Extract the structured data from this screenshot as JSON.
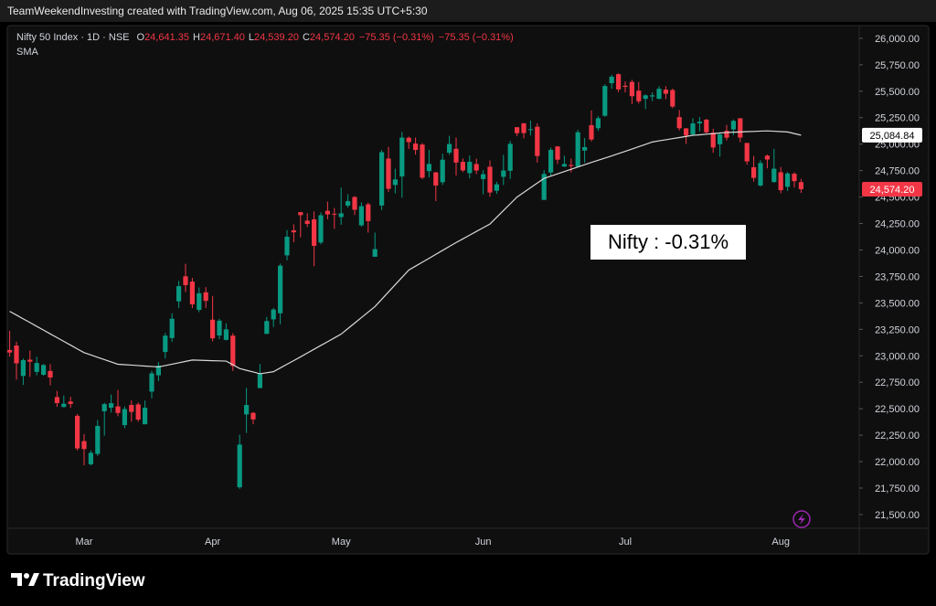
{
  "top_bar": "TeamWeekendInvesting created with TradingView.com, Aug 06, 2025 15:35 UTC+5:30",
  "brand": "TradingView",
  "chart_data": {
    "type": "candlestick",
    "symbol": "Nifty 50 Index · 1D · NSE",
    "ohlc_legend": [
      {
        "key": "O",
        "text": "24,641.35"
      },
      {
        "key": "H",
        "text": "24,671.40"
      },
      {
        "key": "L",
        "text": "24,539.20"
      },
      {
        "key": "C",
        "text": "24,574.20"
      }
    ],
    "change_texts": [
      "−75.35 (−0.31%)",
      "−75.35 (−0.31%)"
    ],
    "annotation": "Nifty : -0.31%",
    "up_color": "#089981",
    "down_color": "#f23645",
    "grid": false,
    "categories": [
      null,
      null,
      null,
      null,
      null,
      null,
      null,
      null,
      null,
      null,
      null,
      "Mar",
      null,
      null,
      null,
      null,
      null,
      null,
      null,
      null,
      null,
      null,
      null,
      null,
      null,
      null,
      null,
      null,
      null,
      null,
      "Apr",
      null,
      null,
      null,
      null,
      null,
      null,
      null,
      null,
      null,
      null,
      null,
      null,
      null,
      null,
      null,
      null,
      null,
      null,
      "May",
      null,
      null,
      null,
      null,
      null,
      null,
      null,
      null,
      null,
      null,
      null,
      null,
      null,
      null,
      null,
      null,
      null,
      null,
      null,
      null,
      "Jun",
      null,
      null,
      null,
      null,
      null,
      null,
      null,
      null,
      null,
      null,
      null,
      null,
      null,
      null,
      null,
      null,
      null,
      null,
      null,
      null,
      "Jul",
      null,
      null,
      null,
      null,
      null,
      null,
      null,
      null,
      null,
      null,
      null,
      null,
      null,
      null,
      null,
      null,
      null,
      null,
      null,
      null,
      null,
      null,
      "Aug",
      null,
      null,
      null
    ],
    "open": [
      23055,
      23097,
      22810,
      22963,
      22848,
      22821,
      22857,
      22610,
      22516,
      22568,
      22433,
      22194,
      21975,
      22073,
      22476,
      22509,
      22522,
      22345,
      22536,
      22541,
      22353,
      22662,
      22816,
      23036,
      23168,
      23515,
      23751,
      23701,
      23434,
      23600,
      23341,
      23192,
      23150,
      23190,
      21758,
      22446,
      22461,
      22695,
      23207,
      23344,
      23402,
      23949,
      24185,
      24357,
      24277,
      24289,
      24070,
      24370,
      24342,
      24311,
      24419,
      24500,
      24233,
      24431,
      23936,
      24420,
      24864,
      24614,
      24694,
      25060,
      25005,
      24996,
      24745,
      24733,
      24640,
      24919,
      24956,
      24832,
      24726,
      24812,
      24670,
      24786,
      24560,
      24691,
      24748,
      25160,
      25197,
      25135,
      25164,
      24473,
      24732,
      24978,
      24789,
      24803,
      24787,
      24939,
      25179,
      25150,
      25268,
      25576,
      25661,
      25552,
      25588,
      25505,
      25428,
      25450,
      25428,
      25515,
      25511,
      25255,
      25149,
      25090,
      25196,
      25231,
      25108,
      24999,
      25126,
      25139,
      25244,
      25011,
      24782,
      24609,
      24891,
      24642,
      24734,
      24597,
      24720,
      24641.35
    ],
    "high": [
      23236,
      23133,
      22975,
      23050,
      22992,
      22924,
      22921,
      22668,
      22626,
      22613,
      22450,
      22261,
      22106,
      22395,
      22556,
      22634,
      22677,
      22522,
      22578,
      22558,
      22577,
      22857,
      22941,
      23216,
      23402,
      23708,
      23869,
      23736,
      23646,
      23649,
      23565,
      23350,
      23306,
      23214,
      22254,
      22697,
      22468,
      22923,
      23368,
      23452,
      23872,
      24189,
      24242,
      24359,
      24348,
      24365,
      24355,
      24457,
      24396,
      24589,
      24526,
      24509,
      24449,
      24447,
      24164,
      24944,
      24973,
      24767,
      25116,
      25071,
      25062,
      25010,
      24946,
      24737,
      24909,
      25079,
      25062,
      24865,
      24893,
      24863,
      24754,
      24846,
      24644,
      24899,
      25030,
      25161,
      25199,
      25223,
      25196,
      24754,
      24967,
      24982,
      24891,
      24863,
      25136,
      25058,
      25318,
      25266,
      25565,
      25655,
      25669,
      25593,
      25608,
      25587,
      25470,
      25489,
      25548,
      25548,
      25525,
      25322,
      25151,
      25245,
      25256,
      25239,
      25145,
      25111,
      25182,
      25233,
      25246,
      25011,
      24889,
      24847,
      24902,
      24957,
      24784,
      24736,
      24734,
      24671.4
    ],
    "low": [
      22992,
      22774,
      22725,
      22800,
      22815,
      22812,
      22720,
      22518,
      22513,
      22508,
      22105,
      21965,
      21964,
      22054,
      22245,
      22464,
      22429,
      22315,
      22378,
      22377,
      22353,
      22599,
      22761,
      22974,
      23132,
      23451,
      23601,
      23451,
      23412,
      23451,
      23136,
      23158,
      23145,
      22857,
      21743,
      22271,
      22353,
      22695,
      23207,
      23273,
      23298,
      23903,
      24073,
      24119,
      24216,
      23847,
      24054,
      24290,
      24199,
      24238,
      24400,
      24331,
      24220,
      24164,
      23936,
      24378,
      24547,
      24535,
      24494,
      24954,
      24900,
      24669,
      24686,
      24462,
      24614,
      24900,
      24704,
      24736,
      24677,
      24717,
      24526,
      24502,
      24530,
      24613,
      24671,
      25077,
      25055,
      25082,
      24825,
      24473,
      24703,
      24813,
      24783,
      24733,
      24783,
      24824,
      25026,
      25125,
      25259,
      25523,
      25490,
      25488,
      25378,
      25384,
      25331,
      25407,
      25425,
      25424,
      25340,
      25129,
      25001,
      25088,
      25121,
      25100,
      24918,
      24882,
      25035,
      25085,
      25018,
      24806,
      24646,
      24599,
      24771,
      24636,
      24535,
      24557,
      24590,
      24539.2
    ],
    "close": [
      23031,
      22929,
      22959,
      22945,
      22932,
      22913,
      22795,
      22553,
      22547,
      22545,
      22125,
      22119,
      22083,
      22337,
      22544,
      22552,
      22460,
      22497,
      22470,
      22397,
      22509,
      22834,
      22907,
      23190,
      23350,
      23658,
      23668,
      23486,
      23591,
      23519,
      23165,
      23332,
      23250,
      22904,
      22161,
      22535,
      22399,
      22829,
      23328,
      23437,
      23851,
      24125,
      24167,
      24329,
      24246,
      24039,
      24328,
      24336,
      24334,
      24346,
      24461,
      24380,
      24414,
      24273,
      24008,
      24924,
      24578,
      24666,
      25062,
      25019,
      24945,
      24683,
      24813,
      24609,
      24853,
      25001,
      24826,
      24752,
      24833,
      24751,
      24716,
      24543,
      24620,
      24751,
      25003,
      25103,
      25104,
      25141,
      24888,
      24718,
      24946,
      24853,
      24812,
      24793,
      25112,
      24972,
      25044,
      25245,
      25549,
      25637,
      25517,
      25541,
      25453,
      25405,
      25461,
      25461,
      25523,
      25476,
      25355,
      25150,
      25082,
      25196,
      25212,
      25112,
      24968,
      25091,
      25061,
      25220,
      25062,
      24837,
      24681,
      24821,
      24855,
      24768,
      24565,
      24723,
      24650,
      24574.2
    ],
    "last_price_label": "24,574.20",
    "sma": {
      "name": "SMA",
      "color": "#d9d9d9",
      "last_label": "25,084.84",
      "values": [
        23420,
        23385,
        23349,
        23314,
        23278,
        23243,
        23207,
        23172,
        23136,
        23101,
        23065,
        23030,
        23008,
        22986,
        22964,
        22942,
        22920,
        22916,
        22912,
        22908,
        22903,
        22899,
        22895,
        22908,
        22921,
        22934,
        22947,
        22960,
        22958,
        22956,
        22954,
        22952,
        22950,
        22915,
        22880,
        22863,
        22847,
        22830,
        22840,
        22850,
        22885,
        22920,
        22955,
        22990,
        23026,
        23062,
        23098,
        23133,
        23169,
        23205,
        23257,
        23309,
        23361,
        23413,
        23465,
        23534,
        23603,
        23672,
        23741,
        23810,
        23847,
        23884,
        23921,
        23959,
        23996,
        24033,
        24070,
        24105,
        24140,
        24175,
        24210,
        24245,
        24309,
        24373,
        24436,
        24500,
        24544,
        24588,
        24632,
        24676,
        24698,
        24719,
        24741,
        24763,
        24784,
        24806,
        24827,
        24848,
        24868,
        24889,
        24910,
        24932,
        24954,
        24976,
        24998,
        25020,
        25031,
        25041,
        25052,
        25062,
        25073,
        25083,
        25088,
        25094,
        25099,
        25105,
        25110,
        25113,
        25115,
        25118,
        25120,
        25123,
        25125,
        25122,
        25118,
        25115,
        25100,
        25084.84
      ]
    },
    "ylim": [
      21370,
      26120
    ],
    "yticks": [
      {
        "value": 21500,
        "label": "21,500.00"
      },
      {
        "value": 21750,
        "label": "21,750.00"
      },
      {
        "value": 22000,
        "label": "22,000.00"
      },
      {
        "value": 22250,
        "label": "22,250.00"
      },
      {
        "value": 22500,
        "label": "22,500.00"
      },
      {
        "value": 22750,
        "label": "22,750.00"
      },
      {
        "value": 23000,
        "label": "23,000.00"
      },
      {
        "value": 23250,
        "label": "23,250.00"
      },
      {
        "value": 23500,
        "label": "23,500.00"
      },
      {
        "value": 23750,
        "label": "23,750.00"
      },
      {
        "value": 24000,
        "label": "24,000.00"
      },
      {
        "value": 24250,
        "label": "24,250.00"
      },
      {
        "value": 24500,
        "label": "24,500.00"
      },
      {
        "value": 24750,
        "label": "24,750.00"
      },
      {
        "value": 25000,
        "label": "25,000.00"
      },
      {
        "value": 25250,
        "label": "25,250.00"
      },
      {
        "value": 25500,
        "label": "25,500.00"
      },
      {
        "value": 25750,
        "label": "25,750.00"
      },
      {
        "value": 26000,
        "label": "26,000.00"
      }
    ]
  }
}
